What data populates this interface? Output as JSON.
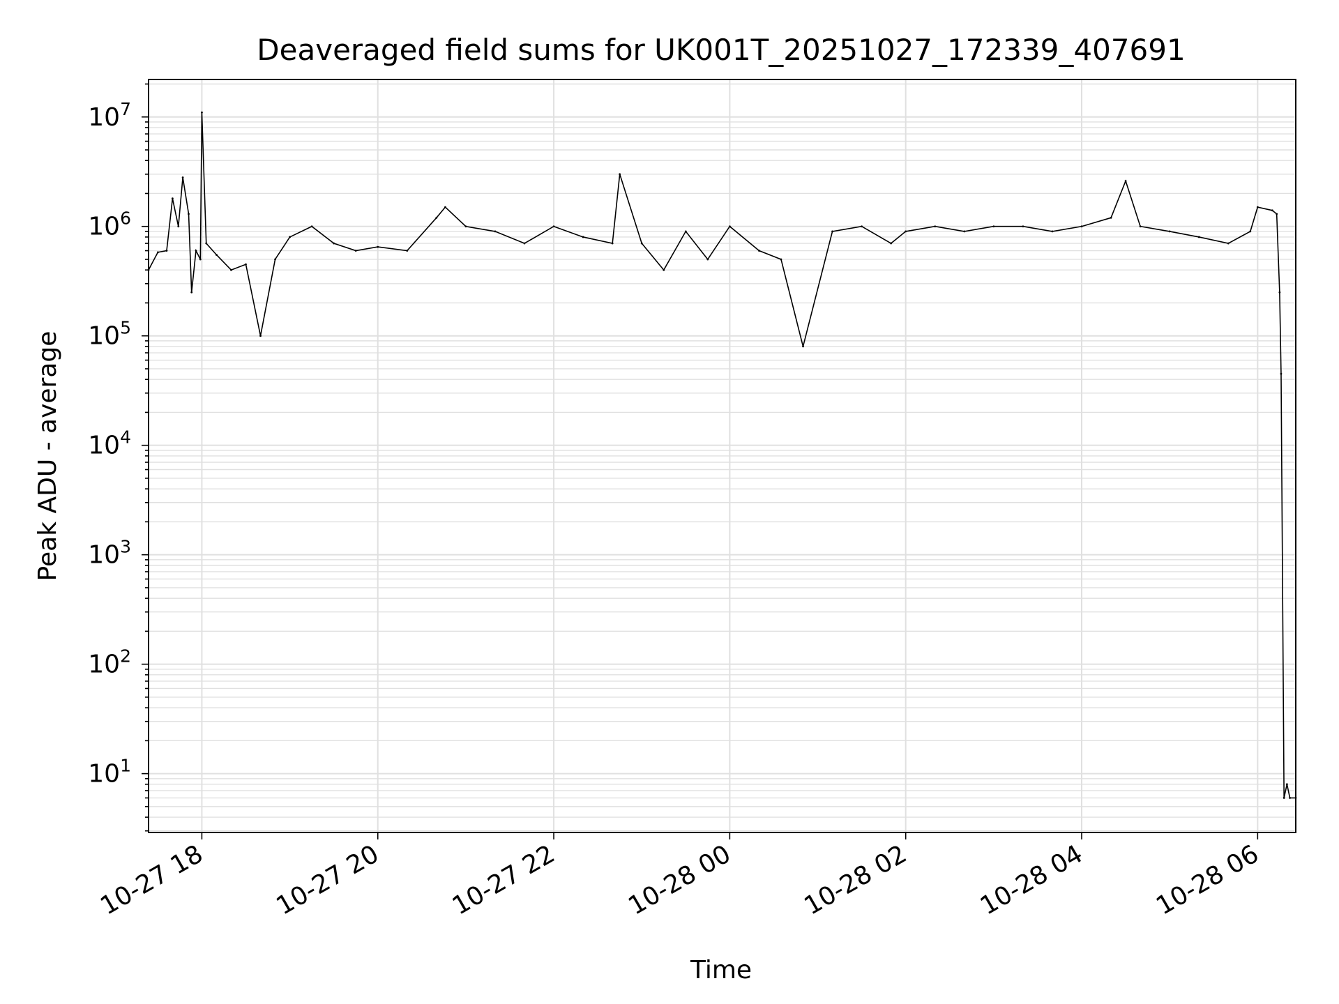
{
  "chart_data": {
    "type": "line",
    "title": "Deaveraged field sums for UK001T_20251027_172339_407691",
    "xlabel": "Time",
    "ylabel": "Peak ADU - average",
    "yscale": "log",
    "grid": true,
    "xlim": [
      "2025-10-27 17:23:39",
      "2025-10-28 06:26:00"
    ],
    "ylim": [
      2.9,
      22000000
    ],
    "x_ticks": [
      {
        "value": "2025-10-27 18:00",
        "label": "10-27 18"
      },
      {
        "value": "2025-10-27 20:00",
        "label": "10-27 20"
      },
      {
        "value": "2025-10-27 22:00",
        "label": "10-27 22"
      },
      {
        "value": "2025-10-28 00:00",
        "label": "10-28 00"
      },
      {
        "value": "2025-10-28 02:00",
        "label": "10-28 02"
      },
      {
        "value": "2025-10-28 04:00",
        "label": "10-28 04"
      },
      {
        "value": "2025-10-28 06:00",
        "label": "10-28 06"
      }
    ],
    "y_ticks": [
      {
        "value": 10,
        "base": "10",
        "exp": "1"
      },
      {
        "value": 100,
        "base": "10",
        "exp": "2"
      },
      {
        "value": 1000,
        "base": "10",
        "exp": "3"
      },
      {
        "value": 10000,
        "base": "10",
        "exp": "4"
      },
      {
        "value": 100000,
        "base": "10",
        "exp": "5"
      },
      {
        "value": 1000000,
        "base": "10",
        "exp": "6"
      },
      {
        "value": 10000000,
        "base": "10",
        "exp": "7"
      }
    ],
    "colors": {
      "line": "#000000",
      "grid": "#e0e0e0",
      "axes": "#000000"
    },
    "series": [
      {
        "x": [
          "2025-10-27 17:23:39",
          "2025-10-27 17:30",
          "2025-10-27 17:36",
          "2025-10-27 17:40",
          "2025-10-27 17:44",
          "2025-10-27 17:47",
          "2025-10-27 17:51",
          "2025-10-27 17:53",
          "2025-10-27 17:56",
          "2025-10-27 17:59",
          "2025-10-27 18:00",
          "2025-10-27 18:03",
          "2025-10-27 18:10",
          "2025-10-27 18:20",
          "2025-10-27 18:30",
          "2025-10-27 18:40",
          "2025-10-27 18:50",
          "2025-10-27 19:00",
          "2025-10-27 19:15",
          "2025-10-27 19:30",
          "2025-10-27 19:45",
          "2025-10-27 20:00",
          "2025-10-27 20:20",
          "2025-10-27 20:40",
          "2025-10-27 20:46",
          "2025-10-27 21:00",
          "2025-10-27 21:20",
          "2025-10-27 21:40",
          "2025-10-27 22:00",
          "2025-10-27 22:20",
          "2025-10-27 22:40",
          "2025-10-27 22:45",
          "2025-10-27 23:00",
          "2025-10-27 23:15",
          "2025-10-27 23:30",
          "2025-10-27 23:45",
          "2025-10-28 00:00",
          "2025-10-28 00:20",
          "2025-10-28 00:35",
          "2025-10-28 00:50",
          "2025-10-28 01:10",
          "2025-10-28 01:30",
          "2025-10-28 01:50",
          "2025-10-28 02:00",
          "2025-10-28 02:20",
          "2025-10-28 02:40",
          "2025-10-28 03:00",
          "2025-10-28 03:20",
          "2025-10-28 03:40",
          "2025-10-28 04:00",
          "2025-10-28 04:20",
          "2025-10-28 04:30",
          "2025-10-28 04:40",
          "2025-10-28 05:00",
          "2025-10-28 05:20",
          "2025-10-28 05:40",
          "2025-10-28 05:55",
          "2025-10-28 06:00",
          "2025-10-28 06:10",
          "2025-10-28 06:13",
          "2025-10-28 06:15",
          "2025-10-28 06:16",
          "2025-10-28 06:18",
          "2025-10-28 06:20",
          "2025-10-28 06:22",
          "2025-10-28 06:26"
        ],
        "y": [
          400000,
          580000,
          600000,
          1800000,
          1000000,
          2800000,
          1300000,
          250000,
          600000,
          500000,
          11000000,
          700000,
          550000,
          400000,
          450000,
          100000,
          500000,
          800000,
          1000000,
          700000,
          600000,
          650000,
          600000,
          1200000,
          1500000,
          1000000,
          900000,
          700000,
          1000000,
          800000,
          700000,
          3000000,
          700000,
          400000,
          900000,
          500000,
          1000000,
          600000,
          500000,
          80000,
          900000,
          1000000,
          700000,
          900000,
          1000000,
          900000,
          1000000,
          1000000,
          900000,
          1000000,
          1200000,
          2600000,
          1000000,
          900000,
          800000,
          700000,
          900000,
          1500000,
          1400000,
          1300000,
          250000,
          45000,
          6,
          8,
          6,
          6
        ]
      }
    ]
  }
}
